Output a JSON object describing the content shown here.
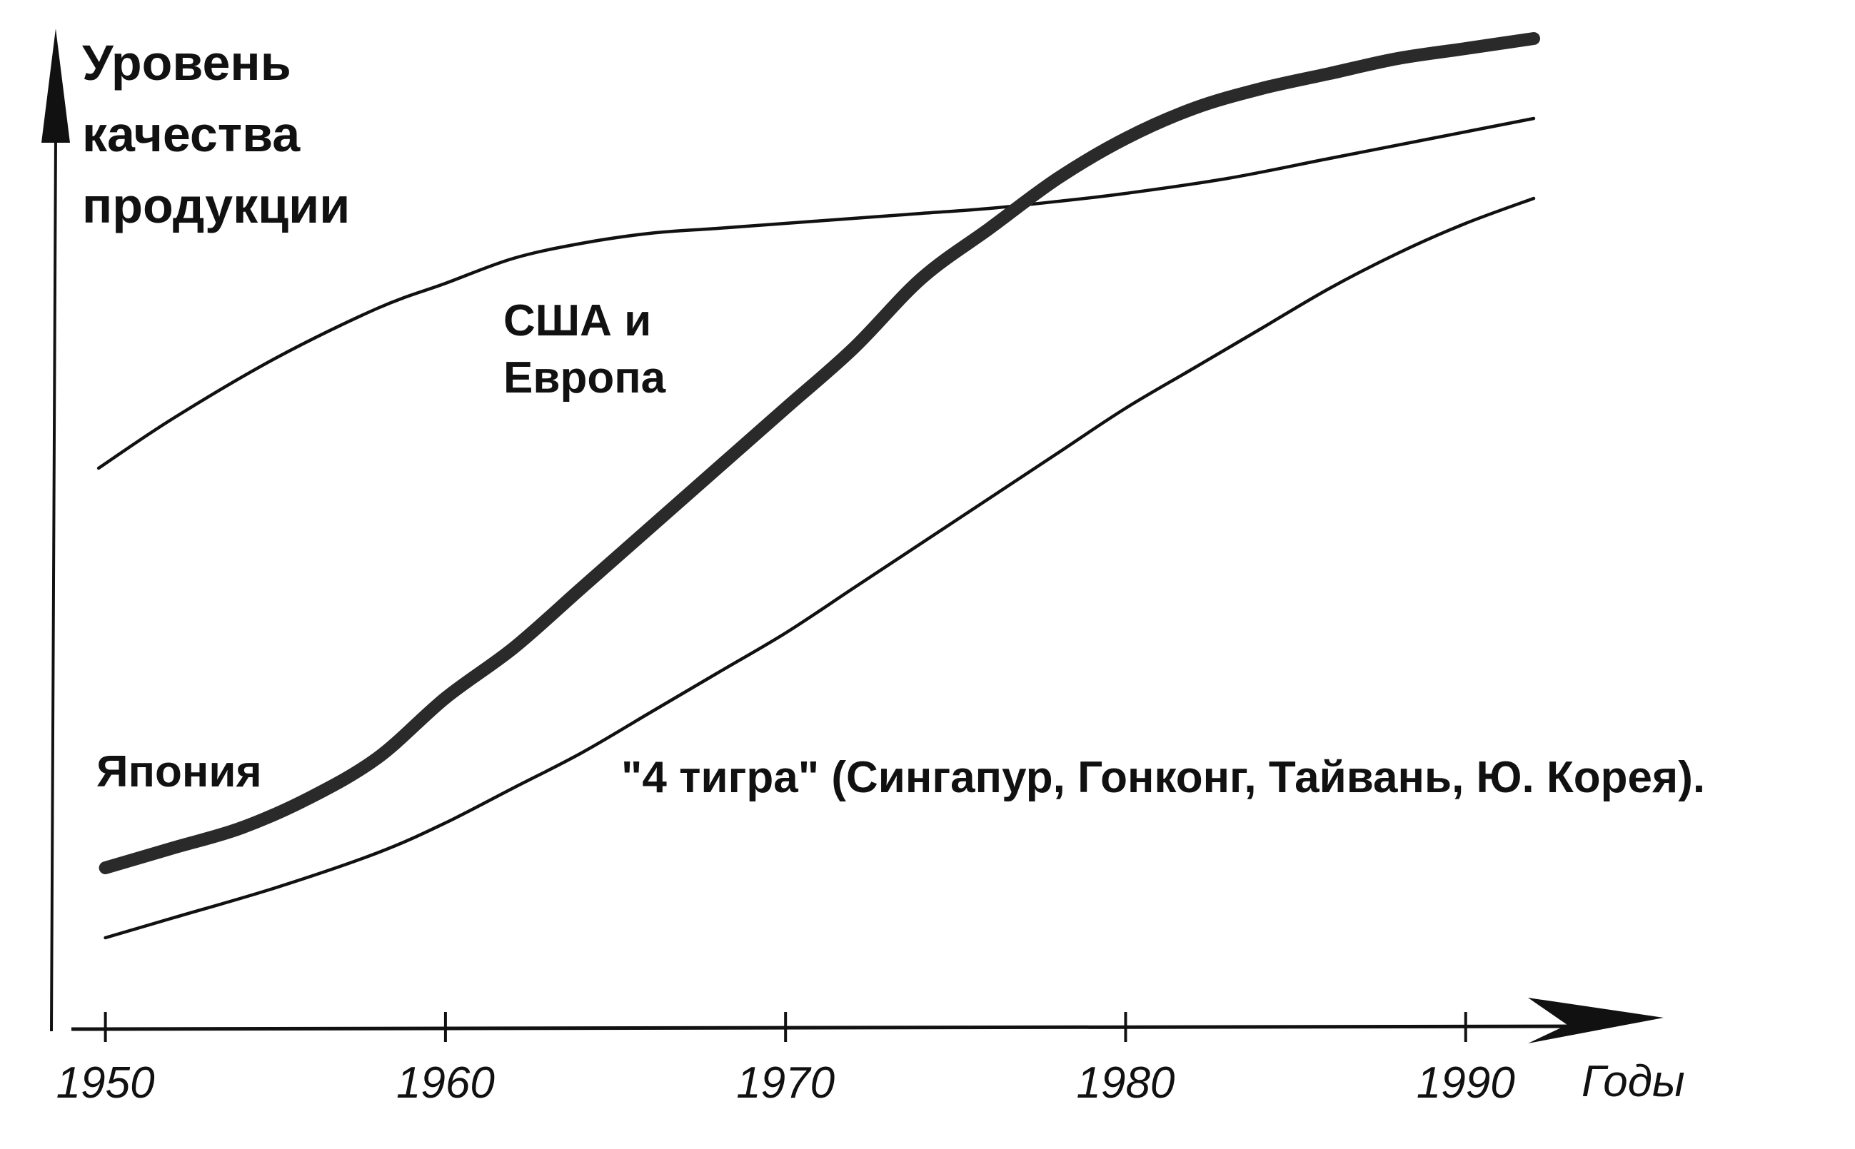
{
  "chart_data": {
    "type": "line",
    "ylabel_lines": [
      "Уровень",
      "качества",
      "продукции"
    ],
    "xlabel": "Годы",
    "x_ticks": [
      1950,
      1960,
      1970,
      1980,
      1990
    ],
    "x_tick_labels": [
      "1950",
      "1960",
      "1970",
      "1980",
      "1990"
    ],
    "xlim": [
      1949,
      1992
    ],
    "ylim": [
      0,
      100
    ],
    "grid": false,
    "legend": "none",
    "series": [
      {
        "name": "США и Европа",
        "label_lines": [
          "США и",
          "Европа"
        ],
        "style": "thin",
        "color": "#111111",
        "x": [
          1949.8,
          1952,
          1955,
          1958,
          1960,
          1962,
          1964,
          1966,
          1968,
          1970,
          1972,
          1974,
          1976,
          1978,
          1980,
          1983,
          1986,
          1989,
          1992
        ],
        "y": [
          56,
          61,
          67,
          72,
          74.5,
          77,
          78.5,
          79.5,
          80,
          80.5,
          81,
          81.5,
          82,
          82.7,
          83.5,
          85,
          87,
          89,
          91
        ]
      },
      {
        "name": "Япония",
        "label_lines": [
          "Япония"
        ],
        "style": "thick",
        "color": "#2a2a2a",
        "x": [
          1950,
          1952,
          1954,
          1956,
          1958,
          1960,
          1962,
          1964,
          1966,
          1968,
          1970,
          1972,
          1974,
          1976,
          1978,
          1980,
          1982,
          1984,
          1986,
          1988,
          1990,
          1992
        ],
        "y": [
          16,
          18,
          20,
          23,
          27,
          33,
          38,
          44,
          50,
          56,
          62,
          68,
          75,
          80,
          85,
          89,
          92,
          94,
          95.5,
          97,
          98,
          99
        ]
      },
      {
        "name": "\"4 тигра\" (Сингапур, Гонконг, Тайвань, Ю. Корея).",
        "label_lines": [
          "\"4 тигра\" (Сингапур, Гонконг, Тайвань, Ю. Корея)."
        ],
        "style": "thin",
        "color": "#111111",
        "x": [
          1950,
          1952,
          1955,
          1958,
          1960,
          1962,
          1964,
          1966,
          1968,
          1970,
          1972,
          1974,
          1976,
          1978,
          1980,
          1982,
          1984,
          1986,
          1988,
          1990,
          1992
        ],
        "y": [
          9,
          11,
          14,
          17.5,
          20.5,
          24,
          27.5,
          31.5,
          35.5,
          39.5,
          44,
          48.5,
          53,
          57.5,
          62,
          66,
          70,
          74,
          77.5,
          80.5,
          83
        ]
      }
    ]
  }
}
